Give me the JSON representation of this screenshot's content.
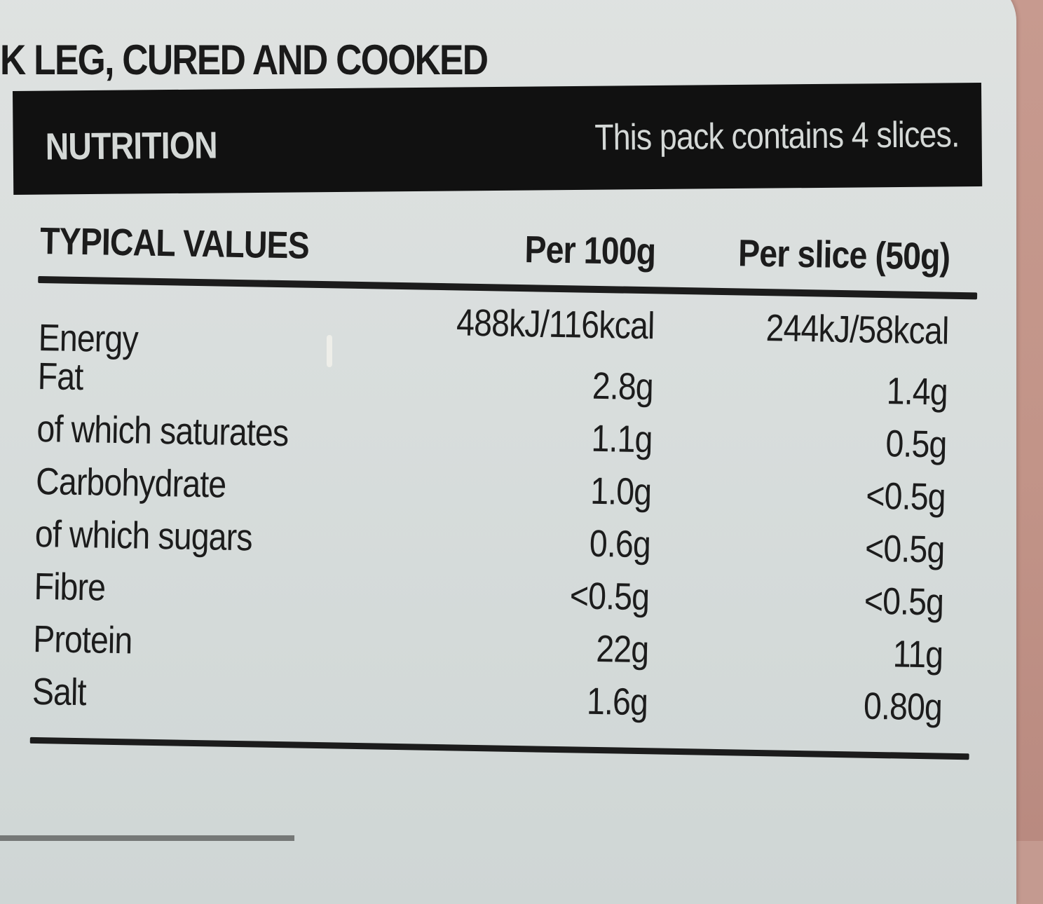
{
  "product": {
    "title": "K LEG, CURED AND COOKED"
  },
  "nutrition_header": {
    "title": "NUTRITION",
    "pack_note": "This pack contains 4 slices."
  },
  "table": {
    "headers": [
      "TYPICAL VALUES",
      "Per 100g",
      "Per slice (50g)"
    ],
    "rows": [
      {
        "name": "Energy",
        "per100g": "488kJ/116kcal",
        "per_slice": "244kJ/58kcal"
      },
      {
        "name": "Fat",
        "per100g": "2.8g",
        "per_slice": "1.4g"
      },
      {
        "name": "of which saturates",
        "per100g": "1.1g",
        "per_slice": "0.5g"
      },
      {
        "name": "Carbohydrate",
        "per100g": "1.0g",
        "per_slice": "<0.5g"
      },
      {
        "name": "of which sugars",
        "per100g": "0.6g",
        "per_slice": "<0.5g"
      },
      {
        "name": "Fibre",
        "per100g": "<0.5g",
        "per_slice": "<0.5g"
      },
      {
        "name": "Protein",
        "per100g": "22g",
        "per_slice": "11g"
      },
      {
        "name": "Salt",
        "per100g": "1.6g",
        "per_slice": "0.80g"
      }
    ]
  },
  "colors": {
    "label_background": "#d9dedd",
    "ink": "#1c1c1c",
    "header_bar": "#111111",
    "package_background": "#c49a90"
  }
}
